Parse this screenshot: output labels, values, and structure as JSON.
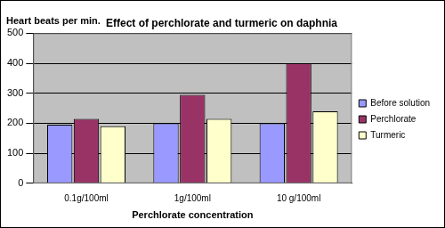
{
  "chart_data": {
    "type": "bar",
    "title": "Effect of perchlorate and turmeric on daphnia",
    "xlabel": "Perchlorate concentration",
    "ylabel": "Heart beats per min.",
    "categories": [
      "0.1g/100ml",
      "1g/100ml",
      "10 g/100ml"
    ],
    "series": [
      {
        "name": "Before solution",
        "color": "#9999ff",
        "values": [
          195,
          200,
          200
        ]
      },
      {
        "name": "Perchlorate",
        "color": "#993366",
        "values": [
          215,
          295,
          400
        ]
      },
      {
        "name": "Turmeric",
        "color": "#ffffcc",
        "values": [
          190,
          215,
          240
        ]
      }
    ],
    "ylim": [
      0,
      500
    ],
    "yticks": [
      0,
      100,
      200,
      300,
      400,
      500
    ],
    "grid": true,
    "legend": "right"
  }
}
